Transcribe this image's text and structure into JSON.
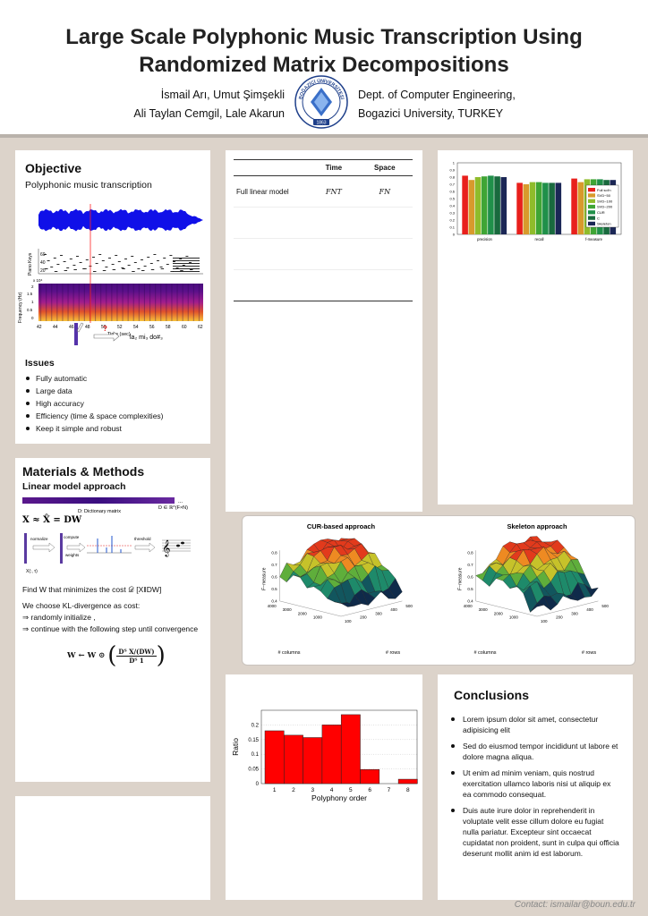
{
  "header": {
    "title_line1": "Large Scale Polyphonic Music Transcription Using",
    "title_line2": "Randomized Matrix Decompositions",
    "authors_line1": "İsmail Arı, Umut Şimşekli",
    "authors_line2": "Ali Taylan Cemgil, Lale Akarun",
    "affil_line1": "Dept. of Computer Engineering,",
    "affil_line2": "Bogazici University, TURKEY",
    "seal_text": "BOĞAZİÇİ ÜNİVERSİTESİ",
    "seal_year": "1863"
  },
  "objective": {
    "heading": "Objective",
    "subheading": "Polyphonic music transcription",
    "piano_ylabel": "Piano Keys",
    "piano_ticks": [
      "60",
      "40",
      "20"
    ],
    "spec_ylabel": "Frequency (Hz)",
    "spec_exp": "x 10⁴",
    "spec_ticks": [
      "2",
      "1.5",
      "1",
      "0.5",
      "0"
    ],
    "time_ticks": [
      "42",
      "44",
      "46",
      "48",
      "50",
      "52",
      "54",
      "56",
      "58",
      "60",
      "62"
    ],
    "time_label": "Time (sec)",
    "question": "?",
    "notes": "la₂ mi₃ do#₃"
  },
  "issues": {
    "heading": "Issues",
    "items": [
      "Fully automatic",
      "Large data",
      "High accuracy",
      "Efficiency (time & space complexities)",
      "Keep it simple and robust"
    ]
  },
  "materials": {
    "heading": "Materials & Methods",
    "subheading": "Linear model approach",
    "dict_label": "D: Dictionary matrix",
    "dict_dim": "D ∈ ℝ^(F×N)",
    "dots": "...",
    "equation": "X ≈ X̂ = DW",
    "x_label": "X(:, τ)",
    "step_normalize": "normalize",
    "step_compute": "compute",
    "step_weights": "weights",
    "step_threshold": "threshold",
    "find_text": "Find W that minimizes the cost 𝒟 [X‖DW]",
    "choose_text": "We choose KL-divergence as cost:",
    "step1": "⇒ randomly initialize  ,",
    "step2": "⇒ continue with the following step until convergence",
    "update_lhs": "W ← W ⊙",
    "update_num": "Dᵀ X/(DW)",
    "update_den": "Dᵀ 1"
  },
  "complexity_table": {
    "headers": [
      "",
      "Time",
      "Space"
    ],
    "rows": [
      [
        "Full linear model",
        "FNT",
        "FN"
      ],
      [
        "",
        "",
        ""
      ],
      [
        "",
        "",
        ""
      ],
      [
        "",
        "",
        ""
      ]
    ]
  },
  "chart_data": [
    {
      "type": "bar",
      "categories": [
        "precision",
        "recall",
        "f-measure"
      ],
      "ylim": [
        0,
        1
      ],
      "yticks": [
        "0",
        "0.1",
        "0.2",
        "0.3",
        "0.4",
        "0.5",
        "0.6",
        "0.7",
        "0.8",
        "0.9",
        "1"
      ],
      "legend_position": "top-right",
      "series": [
        {
          "name": "Full sol'n",
          "color": "#e8201c",
          "values": [
            0.82,
            0.72,
            0.78
          ]
        },
        {
          "name": "SVD−50",
          "color": "#d89a2c",
          "values": [
            0.76,
            0.7,
            0.73
          ]
        },
        {
          "name": "SVD−100",
          "color": "#8fbc2b",
          "values": [
            0.8,
            0.73,
            0.77
          ]
        },
        {
          "name": "SVD−200",
          "color": "#3fa535",
          "values": [
            0.81,
            0.73,
            0.77
          ]
        },
        {
          "name": "CUR",
          "color": "#20904a",
          "values": [
            0.82,
            0.72,
            0.77
          ]
        },
        {
          "name": "C",
          "color": "#196a3e",
          "values": [
            0.81,
            0.72,
            0.76
          ]
        },
        {
          "name": "Skeleton",
          "color": "#1b2756",
          "values": [
            0.8,
            0.72,
            0.76
          ]
        }
      ]
    },
    {
      "type": "surface",
      "title": "CUR-based approach",
      "xlabel": "# columns",
      "ylabel": "# rows",
      "zlabel": "F−measure",
      "zticks": [
        "0.4",
        "0.5",
        "0.6",
        "0.7",
        "0.8"
      ],
      "xticks": [
        "1000",
        "2000",
        "3000",
        "4000"
      ],
      "yticks": [
        "100",
        "200",
        "300",
        "400",
        "500"
      ]
    },
    {
      "type": "surface",
      "title": "Skeleton approach",
      "xlabel": "# columns",
      "ylabel": "# rows",
      "zlabel": "F−measure",
      "zticks": [
        "0.4",
        "0.5",
        "0.6",
        "0.7",
        "0.8"
      ],
      "xticks": [
        "1000",
        "2000",
        "3000",
        "4000"
      ],
      "yticks": [
        "100",
        "200",
        "300",
        "400",
        "500"
      ]
    },
    {
      "type": "bar",
      "categories": [
        "1",
        "2",
        "3",
        "4",
        "5",
        "6",
        "7",
        "8"
      ],
      "values": [
        0.18,
        0.165,
        0.157,
        0.2,
        0.235,
        0.048,
        0.0,
        0.015
      ],
      "xlabel": "Polyphony order",
      "ylabel": "Ratio",
      "ylim": [
        0,
        0.25
      ],
      "yticks": [
        "0",
        "0.05",
        "0.1",
        "0.15",
        "0.2"
      ],
      "color": "#ff0000"
    }
  ],
  "conclusions": {
    "heading": "Conclusions",
    "items": [
      "Lorem ipsum dolor sit amet, consectetur adipisicing elit",
      "Sed do eiusmod tempor incididunt ut labore et dolore magna aliqua.",
      "Ut enim ad minim veniam, quis nostrud exercitation ullamco laboris nisi ut aliquip ex ea commodo consequat.",
      "Duis aute irure dolor in reprehenderit in voluptate velit esse cillum dolore eu fugiat nulla pariatur. Excepteur sint occaecat cupidatat non proident, sunt in culpa qui officia deserunt mollit anim id est laborum."
    ]
  },
  "contact": "Contact: ismailar@boun.edu.tr"
}
